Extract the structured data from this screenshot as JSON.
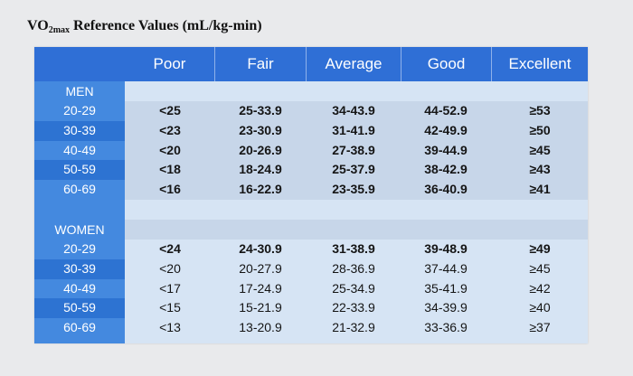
{
  "title": {
    "prefix": "VO",
    "subscript": "2max",
    "text": " Reference Values (mL/kg-min)"
  },
  "columns": [
    "Poor",
    "Fair",
    "Average",
    "Good",
    "Excellent"
  ],
  "men": {
    "label": "MEN",
    "rows": [
      {
        "age": "20-29",
        "values": [
          "<25",
          "25-33.9",
          "34-43.9",
          "44-52.9",
          "≥53"
        ]
      },
      {
        "age": "30-39",
        "values": [
          "<23",
          "23-30.9",
          "31-41.9",
          "42-49.9",
          "≥50"
        ]
      },
      {
        "age": "40-49",
        "values": [
          "<20",
          "20-26.9",
          "27-38.9",
          "39-44.9",
          "≥45"
        ]
      },
      {
        "age": "50-59",
        "values": [
          "<18",
          "18-24.9",
          "25-37.9",
          "38-42.9",
          "≥43"
        ]
      },
      {
        "age": "60-69",
        "values": [
          "<16",
          "16-22.9",
          "23-35.9",
          "36-40.9",
          "≥41"
        ]
      }
    ]
  },
  "women": {
    "label": "WOMEN",
    "rows": [
      {
        "age": "20-29",
        "values": [
          "<24",
          "24-30.9",
          "31-38.9",
          "39-48.9",
          "≥49"
        ]
      },
      {
        "age": "30-39",
        "values": [
          "<20",
          "20-27.9",
          "28-36.9",
          "37-44.9",
          "≥45"
        ]
      },
      {
        "age": "40-49",
        "values": [
          "<17",
          "17-24.9",
          "25-34.9",
          "35-41.9",
          "≥42"
        ]
      },
      {
        "age": "50-59",
        "values": [
          "<15",
          "15-21.9",
          "22-33.9",
          "34-39.9",
          "≥40"
        ]
      },
      {
        "age": "60-69",
        "values": [
          "<13",
          "13-20.9",
          "21-32.9",
          "33-36.9",
          "≥37"
        ]
      }
    ]
  },
  "colors": {
    "header": "#2f6fd6",
    "left_column": "#4489df",
    "left_column_alt": "#2d73d2",
    "stripe_light": "#d6e4f4",
    "stripe_dark": "#c7d6e9"
  }
}
